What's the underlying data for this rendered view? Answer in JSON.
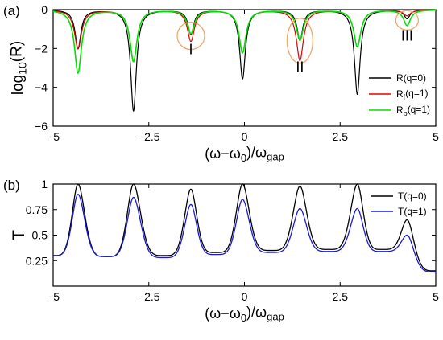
{
  "chart_data": [
    {
      "panel": "(a)",
      "type": "line",
      "xlabel_parts": [
        "(ω−ω",
        "0",
        ")/ω",
        "gap"
      ],
      "ylabel_parts": [
        "log",
        "10",
        "(R)"
      ],
      "xlim": [
        -5,
        5
      ],
      "ylim": [
        -6,
        0
      ],
      "xticks": [
        -5,
        -2.5,
        0,
        2.5,
        5
      ],
      "xtick_labels": [
        "−5",
        "−2.5",
        "0",
        "2.5",
        "5"
      ],
      "yticks": [
        0,
        -2,
        -4,
        -6
      ],
      "ytick_labels": [
        "0",
        "−2",
        "−4",
        "−6"
      ],
      "legend_position": "bottom-right",
      "dips": [
        {
          "x": -4.35,
          "values": [
            -2.0,
            -2.0,
            -3.25
          ]
        },
        {
          "x": -2.9,
          "values": [
            -5.2,
            -2.65,
            -2.65
          ]
        },
        {
          "x": -1.4,
          "values": [
            -1.25,
            -1.6,
            -1.2
          ]
        },
        {
          "x": -0.05,
          "values": [
            -3.55,
            -2.2,
            -2.2
          ]
        },
        {
          "x": 1.45,
          "values": [
            -1.55,
            -2.6,
            -1.55
          ]
        },
        {
          "x": 2.95,
          "values": [
            -4.35,
            -1.9,
            -1.9
          ]
        },
        {
          "x": 4.25,
          "values": [
            -0.45,
            -0.3,
            -0.8
          ]
        }
      ],
      "series": [
        {
          "label_parts": [
            "R(q=0)"
          ],
          "color": "#000000"
        },
        {
          "label_parts": [
            "R",
            "f",
            "(q=1)"
          ],
          "color": "#e00000"
        },
        {
          "label_parts": [
            "R",
            "b",
            "(q=1)"
          ],
          "color": "#00e000"
        }
      ],
      "annotations": [
        {
          "text": "I",
          "x": -1.4,
          "y": -2.3
        },
        {
          "text": "II",
          "x": 1.45,
          "y": -3.2
        },
        {
          "text": "III",
          "x": 4.25,
          "y": -1.6
        }
      ]
    },
    {
      "panel": "(b)",
      "type": "line",
      "xlabel_parts": [
        "(ω−ω",
        "0",
        ")/ω",
        "gap"
      ],
      "ylabel_parts": [
        "T"
      ],
      "xlim": [
        -5,
        5
      ],
      "ylim": [
        0,
        1
      ],
      "xticks": [
        -5,
        -2.5,
        0,
        2.5,
        5
      ],
      "xtick_labels": [
        "−5",
        "−2.5",
        "0",
        "2.5",
        "5"
      ],
      "yticks": [
        0.25,
        0.5,
        0.75,
        1
      ],
      "ytick_labels": [
        "0.25",
        "0.5",
        "0.75",
        "1"
      ],
      "legend_position": "top-right",
      "peaks": [
        {
          "x": -4.35,
          "values": [
            1.0,
            0.9
          ]
        },
        {
          "x": -2.9,
          "values": [
            1.0,
            0.87
          ]
        },
        {
          "x": -1.4,
          "values": [
            0.95,
            0.8
          ]
        },
        {
          "x": -0.05,
          "values": [
            1.0,
            0.85
          ]
        },
        {
          "x": 1.45,
          "values": [
            0.98,
            0.76
          ]
        },
        {
          "x": 2.95,
          "values": [
            1.0,
            0.76
          ]
        },
        {
          "x": 4.25,
          "values": [
            0.65,
            0.5
          ]
        }
      ],
      "minima": [
        {
          "x": -5.0,
          "values": [
            0.3,
            0.3
          ]
        },
        {
          "x": -3.6,
          "values": [
            0.29,
            0.29
          ]
        },
        {
          "x": -2.1,
          "values": [
            0.3,
            0.28
          ]
        },
        {
          "x": -0.75,
          "values": [
            0.33,
            0.31
          ]
        },
        {
          "x": 0.7,
          "values": [
            0.35,
            0.33
          ]
        },
        {
          "x": 2.2,
          "values": [
            0.36,
            0.34
          ]
        },
        {
          "x": 3.6,
          "values": [
            0.36,
            0.34
          ]
        },
        {
          "x": 5.0,
          "values": [
            0.15,
            0.14
          ]
        }
      ],
      "series": [
        {
          "label_parts": [
            "T(q=0)"
          ],
          "color": "#000000"
        },
        {
          "label_parts": [
            "T(q=1)"
          ],
          "color": "#1a1ad6"
        }
      ]
    }
  ]
}
